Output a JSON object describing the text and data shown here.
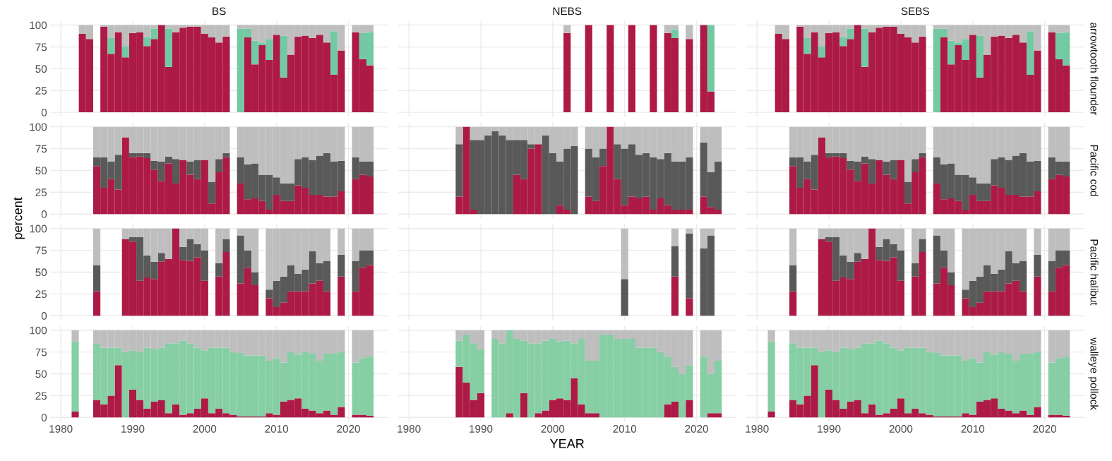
{
  "chart_data": [
    {
      "type": "bar",
      "stacked": true,
      "title": "BS",
      "tick_labels": "y",
      "grid": true,
      "xlim": [
        1978.5,
        2025.5
      ],
      "ylim": [
        -5,
        105
      ],
      "xticks": [
        1980,
        1990,
        2000,
        2010,
        2020
      ],
      "yticks": [
        0,
        25,
        50,
        75,
        100
      ],
      "x": [
        1983,
        1984,
        1986,
        1987,
        1988,
        1989,
        1990,
        1991,
        1992,
        1993,
        1994,
        1995,
        1996,
        1997,
        1998,
        1999,
        2000,
        2001,
        2002,
        2003,
        2005,
        2006,
        2007,
        2008,
        2009,
        2010,
        2011,
        2012,
        2013,
        2014,
        2015,
        2016,
        2017,
        2018,
        2019,
        2021,
        2022,
        2023
      ],
      "series": [
        {
          "color": "#ad1a45",
          "values": [
            90,
            84,
            98,
            67,
            92,
            63,
            91,
            92,
            76,
            84,
            100,
            52,
            92,
            97,
            98,
            98,
            90,
            86,
            80,
            87,
            0,
            86,
            55,
            77,
            60,
            89,
            40,
            66,
            87,
            88,
            85,
            89,
            80,
            43,
            71,
            92,
            61,
            54
          ]
        },
        {
          "color": "#73c9a2",
          "values": [
            0,
            0,
            0,
            18,
            0,
            13,
            0,
            0,
            10,
            12,
            0,
            44,
            0,
            0,
            0,
            0,
            0,
            0,
            0,
            0,
            96,
            10,
            27,
            3,
            24,
            0,
            48,
            0,
            0,
            0,
            0,
            0,
            0,
            50,
            0,
            0,
            30,
            38
          ]
        },
        {
          "color": "#bebebe",
          "values": [
            10,
            16,
            2,
            15,
            8,
            24,
            9,
            8,
            14,
            4,
            0,
            4,
            8,
            3,
            2,
            2,
            10,
            14,
            20,
            13,
            4,
            4,
            18,
            20,
            16,
            11,
            12,
            34,
            13,
            12,
            15,
            11,
            20,
            7,
            29,
            8,
            9,
            8
          ]
        }
      ]
    },
    {
      "type": "bar",
      "stacked": true,
      "title": "NEBS",
      "tick_labels": false,
      "grid": true,
      "xlim": [
        1978.5,
        2025.5
      ],
      "ylim": [
        -5,
        105
      ],
      "xticks": [
        1980,
        1990,
        2000,
        2010,
        2020
      ],
      "yticks": [
        0,
        25,
        50,
        75,
        100
      ],
      "x": [
        2002,
        2005,
        2008,
        2011,
        2014,
        2016,
        2017,
        2019,
        2021,
        2022
      ],
      "series": [
        {
          "color": "#ad1a45",
          "values": [
            91,
            100,
            100,
            100,
            100,
            91,
            85,
            84,
            100,
            24
          ]
        },
        {
          "color": "#73c9a2",
          "values": [
            0,
            0,
            0,
            0,
            0,
            0,
            10,
            0,
            0,
            76
          ]
        },
        {
          "color": "#bebebe",
          "values": [
            9,
            0,
            0,
            0,
            0,
            9,
            5,
            16,
            0,
            0
          ]
        }
      ]
    },
    {
      "type": "bar",
      "stacked": true,
      "title": "SEBS",
      "annotations": [
        "arrowtooth flounder"
      ],
      "tick_labels": false,
      "grid": true,
      "xlim": [
        1978.5,
        2025.5
      ],
      "ylim": [
        -5,
        105
      ],
      "xticks": [
        1980,
        1990,
        2000,
        2010,
        2020
      ],
      "yticks": [
        0,
        25,
        50,
        75,
        100
      ],
      "x": [
        1983,
        1984,
        1986,
        1987,
        1988,
        1989,
        1990,
        1991,
        1992,
        1993,
        1994,
        1995,
        1996,
        1997,
        1998,
        1999,
        2000,
        2001,
        2002,
        2003,
        2005,
        2006,
        2007,
        2008,
        2009,
        2010,
        2011,
        2012,
        2013,
        2014,
        2015,
        2016,
        2017,
        2018,
        2019,
        2021,
        2022,
        2023
      ],
      "series": [
        {
          "color": "#ad1a45",
          "values": [
            90,
            84,
            98,
            67,
            92,
            63,
            91,
            92,
            76,
            84,
            100,
            52,
            92,
            97,
            98,
            98,
            90,
            86,
            80,
            87,
            0,
            86,
            55,
            77,
            60,
            89,
            40,
            66,
            87,
            88,
            85,
            89,
            80,
            43,
            71,
            92,
            61,
            54
          ]
        },
        {
          "color": "#73c9a2",
          "values": [
            0,
            0,
            0,
            18,
            0,
            13,
            0,
            0,
            10,
            12,
            0,
            44,
            0,
            0,
            0,
            0,
            0,
            0,
            0,
            0,
            96,
            10,
            27,
            3,
            24,
            0,
            48,
            0,
            0,
            0,
            0,
            0,
            0,
            50,
            0,
            0,
            30,
            38
          ]
        },
        {
          "color": "#bebebe",
          "values": [
            10,
            16,
            2,
            15,
            8,
            24,
            9,
            8,
            14,
            4,
            0,
            4,
            8,
            3,
            2,
            2,
            10,
            14,
            20,
            13,
            4,
            4,
            18,
            20,
            16,
            11,
            12,
            34,
            13,
            12,
            15,
            11,
            20,
            7,
            29,
            8,
            9,
            8
          ]
        }
      ]
    },
    {
      "type": "bar",
      "stacked": true,
      "ylabel": "percent",
      "tick_labels": "y",
      "grid": true,
      "xlim": [
        1978.5,
        2025.5
      ],
      "ylim": [
        -5,
        105
      ],
      "xticks": [
        1980,
        1990,
        2000,
        2010,
        2020
      ],
      "yticks": [
        0,
        25,
        50,
        75,
        100
      ],
      "x": [
        1985,
        1986,
        1987,
        1988,
        1989,
        1990,
        1991,
        1992,
        1993,
        1994,
        1995,
        1996,
        1997,
        1998,
        1999,
        2000,
        2001,
        2002,
        2003,
        2005,
        2006,
        2007,
        2008,
        2009,
        2010,
        2011,
        2012,
        2013,
        2014,
        2015,
        2016,
        2017,
        2018,
        2019,
        2021,
        2022,
        2023
      ],
      "series": [
        {
          "color": "#ad1a45",
          "values": [
            55,
            30,
            40,
            28,
            88,
            65,
            66,
            64,
            51,
            38,
            58,
            35,
            62,
            45,
            40,
            62,
            12,
            48,
            65,
            35,
            17,
            18,
            15,
            5,
            22,
            15,
            15,
            33,
            30,
            22,
            22,
            20,
            20,
            26,
            40,
            45,
            43
          ]
        },
        {
          "color": "#595959",
          "values": [
            10,
            35,
            20,
            40,
            0,
            5,
            4,
            6,
            10,
            22,
            8,
            28,
            0,
            15,
            22,
            0,
            25,
            15,
            5,
            30,
            40,
            40,
            30,
            40,
            20,
            20,
            20,
            30,
            35,
            40,
            45,
            50,
            40,
            35,
            25,
            15,
            17
          ]
        },
        {
          "color": "#bebebe",
          "values": [
            35,
            35,
            40,
            32,
            12,
            30,
            30,
            30,
            39,
            40,
            34,
            37,
            38,
            40,
            38,
            38,
            63,
            37,
            30,
            35,
            43,
            42,
            55,
            55,
            58,
            65,
            65,
            37,
            35,
            38,
            33,
            30,
            40,
            39,
            35,
            40,
            40
          ]
        }
      ]
    },
    {
      "type": "bar",
      "stacked": true,
      "tick_labels": false,
      "grid": true,
      "xlim": [
        1978.5,
        2025.5
      ],
      "ylim": [
        -5,
        105
      ],
      "xticks": [
        1980,
        1990,
        2000,
        2010,
        2020
      ],
      "yticks": [
        0,
        25,
        50,
        75,
        100
      ],
      "x": [
        1987,
        1988,
        1989,
        1990,
        1991,
        1992,
        1993,
        1994,
        1995,
        1996,
        1997,
        1998,
        1999,
        2000,
        2001,
        2002,
        2003,
        2005,
        2006,
        2007,
        2008,
        2009,
        2010,
        2011,
        2012,
        2013,
        2014,
        2015,
        2016,
        2017,
        2018,
        2019,
        2021,
        2022,
        2023
      ],
      "series": [
        {
          "color": "#ad1a45",
          "values": [
            20,
            100,
            5,
            0,
            0,
            0,
            0,
            0,
            45,
            40,
            75,
            80,
            0,
            0,
            10,
            5,
            0,
            20,
            15,
            55,
            100,
            40,
            10,
            20,
            18,
            20,
            5,
            18,
            10,
            5,
            5,
            5,
            20,
            8,
            5
          ]
        },
        {
          "color": "#595959",
          "values": [
            60,
            0,
            80,
            85,
            90,
            95,
            90,
            85,
            40,
            45,
            5,
            0,
            90,
            70,
            50,
            70,
            78,
            55,
            50,
            20,
            0,
            40,
            65,
            60,
            50,
            50,
            60,
            45,
            60,
            55,
            55,
            60,
            62,
            40,
            55
          ]
        },
        {
          "color": "#bebebe",
          "values": [
            20,
            0,
            15,
            15,
            10,
            5,
            10,
            15,
            15,
            15,
            20,
            20,
            10,
            30,
            40,
            25,
            22,
            25,
            35,
            25,
            0,
            20,
            25,
            20,
            32,
            30,
            35,
            37,
            30,
            40,
            40,
            35,
            18,
            52,
            40
          ]
        }
      ]
    },
    {
      "type": "bar",
      "stacked": true,
      "annotations": [
        "Pacific cod"
      ],
      "tick_labels": false,
      "grid": true,
      "xlim": [
        1978.5,
        2025.5
      ],
      "ylim": [
        -5,
        105
      ],
      "xticks": [
        1980,
        1990,
        2000,
        2010,
        2020
      ],
      "yticks": [
        0,
        25,
        50,
        75,
        100
      ],
      "x": [
        1985,
        1986,
        1987,
        1988,
        1989,
        1990,
        1991,
        1992,
        1993,
        1994,
        1995,
        1996,
        1997,
        1998,
        1999,
        2000,
        2001,
        2002,
        2003,
        2005,
        2006,
        2007,
        2008,
        2009,
        2010,
        2011,
        2012,
        2013,
        2014,
        2015,
        2016,
        2017,
        2018,
        2019,
        2021,
        2022,
        2023
      ],
      "series": [
        {
          "color": "#ad1a45",
          "values": [
            55,
            30,
            40,
            28,
            88,
            65,
            66,
            64,
            51,
            38,
            58,
            35,
            62,
            45,
            40,
            62,
            12,
            48,
            65,
            35,
            17,
            18,
            15,
            5,
            22,
            15,
            15,
            33,
            30,
            22,
            22,
            20,
            20,
            26,
            40,
            45,
            43
          ]
        },
        {
          "color": "#595959",
          "values": [
            10,
            35,
            20,
            40,
            0,
            5,
            4,
            6,
            10,
            22,
            8,
            28,
            0,
            15,
            22,
            0,
            25,
            15,
            5,
            30,
            40,
            40,
            30,
            40,
            20,
            20,
            20,
            30,
            35,
            40,
            45,
            50,
            40,
            35,
            25,
            15,
            17
          ]
        },
        {
          "color": "#bebebe",
          "values": [
            35,
            35,
            40,
            32,
            12,
            30,
            30,
            30,
            39,
            40,
            34,
            37,
            38,
            40,
            38,
            38,
            63,
            37,
            30,
            35,
            43,
            42,
            55,
            55,
            58,
            65,
            65,
            37,
            35,
            38,
            33,
            30,
            40,
            39,
            35,
            40,
            40
          ]
        }
      ]
    },
    {
      "type": "bar",
      "stacked": true,
      "tick_labels": "y",
      "grid": true,
      "xlim": [
        1978.5,
        2025.5
      ],
      "ylim": [
        -5,
        105
      ],
      "xticks": [
        1980,
        1990,
        2000,
        2010,
        2020
      ],
      "yticks": [
        0,
        25,
        50,
        75,
        100
      ],
      "x": [
        1985,
        1989,
        1990,
        1991,
        1992,
        1993,
        1994,
        1995,
        1996,
        1997,
        1998,
        1999,
        2000,
        2002,
        2003,
        2005,
        2006,
        2007,
        2009,
        2010,
        2011,
        2012,
        2013,
        2014,
        2015,
        2016,
        2017,
        2019,
        2021,
        2022,
        2023
      ],
      "series": [
        {
          "color": "#ad1a45",
          "values": [
            28,
            88,
            85,
            40,
            44,
            42,
            62,
            65,
            100,
            64,
            63,
            67,
            40,
            45,
            73,
            37,
            55,
            35,
            20,
            10,
            15,
            28,
            28,
            28,
            37,
            40,
            28,
            45,
            28,
            55,
            58
          ]
        },
        {
          "color": "#595959",
          "values": [
            30,
            0,
            5,
            50,
            25,
            20,
            10,
            0,
            0,
            15,
            25,
            15,
            35,
            15,
            15,
            55,
            20,
            15,
            10,
            30,
            30,
            30,
            20,
            25,
            37,
            20,
            35,
            25,
            35,
            20,
            17
          ]
        },
        {
          "color": "#bebebe",
          "values": [
            42,
            12,
            10,
            10,
            31,
            38,
            28,
            35,
            0,
            21,
            12,
            18,
            25,
            40,
            12,
            8,
            25,
            50,
            70,
            60,
            55,
            42,
            52,
            47,
            26,
            40,
            37,
            30,
            37,
            25,
            25
          ]
        }
      ]
    },
    {
      "type": "bar",
      "stacked": true,
      "tick_labels": false,
      "grid": true,
      "xlim": [
        1978.5,
        2025.5
      ],
      "ylim": [
        -5,
        105
      ],
      "xticks": [
        1980,
        1990,
        2000,
        2010,
        2020
      ],
      "yticks": [
        0,
        25,
        50,
        75,
        100
      ],
      "x": [
        2010,
        2017,
        2019,
        2021,
        2022
      ],
      "series": [
        {
          "color": "#ad1a45",
          "values": [
            0,
            45,
            20,
            0,
            0
          ]
        },
        {
          "color": "#595959",
          "values": [
            42,
            35,
            74,
            77,
            92
          ]
        },
        {
          "color": "#bebebe",
          "values": [
            58,
            20,
            6,
            23,
            8
          ]
        }
      ]
    },
    {
      "type": "bar",
      "stacked": true,
      "annotations": [
        "Pacific halibut"
      ],
      "tick_labels": false,
      "grid": true,
      "xlim": [
        1978.5,
        2025.5
      ],
      "ylim": [
        -5,
        105
      ],
      "xticks": [
        1980,
        1990,
        2000,
        2010,
        2020
      ],
      "yticks": [
        0,
        25,
        50,
        75,
        100
      ],
      "x": [
        1985,
        1989,
        1990,
        1991,
        1992,
        1993,
        1994,
        1995,
        1996,
        1997,
        1998,
        1999,
        2000,
        2002,
        2003,
        2005,
        2006,
        2007,
        2009,
        2010,
        2011,
        2012,
        2013,
        2014,
        2015,
        2016,
        2017,
        2019,
        2021,
        2022,
        2023
      ],
      "series": [
        {
          "color": "#ad1a45",
          "values": [
            28,
            88,
            85,
            40,
            44,
            42,
            62,
            65,
            100,
            64,
            63,
            67,
            40,
            45,
            73,
            37,
            55,
            35,
            20,
            10,
            15,
            28,
            28,
            28,
            37,
            40,
            28,
            45,
            28,
            55,
            58
          ]
        },
        {
          "color": "#595959",
          "values": [
            30,
            0,
            5,
            50,
            25,
            20,
            10,
            0,
            0,
            15,
            25,
            15,
            35,
            15,
            15,
            55,
            20,
            15,
            10,
            30,
            30,
            30,
            20,
            25,
            37,
            20,
            35,
            25,
            35,
            20,
            17
          ]
        },
        {
          "color": "#bebebe",
          "values": [
            42,
            12,
            10,
            10,
            31,
            38,
            28,
            35,
            0,
            21,
            12,
            18,
            25,
            40,
            12,
            8,
            25,
            50,
            70,
            60,
            55,
            42,
            52,
            47,
            26,
            40,
            37,
            30,
            37,
            25,
            25
          ]
        }
      ]
    },
    {
      "type": "bar",
      "stacked": true,
      "grid": true,
      "xlim": [
        1978.5,
        2025.5
      ],
      "ylim": [
        -5,
        105
      ],
      "xticks": [
        1980,
        1990,
        2000,
        2010,
        2020
      ],
      "yticks": [
        0,
        25,
        50,
        75,
        100
      ],
      "x": [
        1982,
        1985,
        1986,
        1987,
        1988,
        1989,
        1990,
        1991,
        1992,
        1993,
        1994,
        1995,
        1996,
        1997,
        1998,
        1999,
        2000,
        2001,
        2002,
        2003,
        2004,
        2005,
        2006,
        2007,
        2008,
        2009,
        2010,
        2011,
        2012,
        2013,
        2014,
        2015,
        2016,
        2017,
        2018,
        2019,
        2021,
        2022,
        2023
      ],
      "series": [
        {
          "color": "#ad1a45",
          "values": [
            7,
            20,
            15,
            25,
            60,
            0,
            32,
            20,
            10,
            18,
            20,
            5,
            15,
            3,
            5,
            10,
            22,
            5,
            10,
            5,
            3,
            1,
            1,
            1,
            1,
            5,
            3,
            18,
            20,
            22,
            10,
            8,
            5,
            8,
            3,
            12,
            3,
            3,
            2
          ]
        },
        {
          "color": "#86cea4",
          "values": [
            80,
            65,
            65,
            55,
            20,
            75,
            45,
            55,
            70,
            60,
            60,
            80,
            70,
            85,
            80,
            70,
            55,
            75,
            70,
            75,
            72,
            73,
            70,
            70,
            70,
            60,
            65,
            45,
            55,
            50,
            65,
            65,
            60,
            65,
            70,
            63,
            60,
            65,
            68
          ]
        },
        {
          "color": "#bebebe",
          "values": [
            13,
            15,
            20,
            20,
            20,
            25,
            23,
            25,
            20,
            22,
            20,
            15,
            15,
            12,
            15,
            20,
            23,
            20,
            20,
            20,
            25,
            26,
            29,
            29,
            29,
            35,
            32,
            37,
            25,
            28,
            25,
            27,
            35,
            27,
            27,
            25,
            37,
            32,
            30
          ]
        }
      ]
    },
    {
      "type": "bar",
      "stacked": true,
      "xlabel": "YEAR",
      "tick_labels": "x",
      "grid": true,
      "xlim": [
        1978.5,
        2025.5
      ],
      "ylim": [
        -5,
        105
      ],
      "xticks": [
        1980,
        1990,
        2000,
        2010,
        2020
      ],
      "yticks": [
        0,
        25,
        50,
        75,
        100
      ],
      "x": [
        1987,
        1988,
        1989,
        1990,
        1992,
        1993,
        1994,
        1995,
        1996,
        1997,
        1998,
        1999,
        2000,
        2001,
        2002,
        2003,
        2004,
        2005,
        2006,
        2007,
        2008,
        2009,
        2010,
        2011,
        2012,
        2013,
        2014,
        2015,
        2016,
        2017,
        2018,
        2019,
        2021,
        2022,
        2023
      ],
      "series": [
        {
          "color": "#ad1a45",
          "values": [
            58,
            40,
            20,
            28,
            0,
            0,
            5,
            0,
            28,
            0,
            5,
            8,
            20,
            22,
            20,
            45,
            15,
            5,
            5,
            0,
            0,
            0,
            0,
            0,
            0,
            0,
            0,
            0,
            15,
            18,
            0,
            20,
            0,
            5,
            5
          ]
        },
        {
          "color": "#86cea4",
          "values": [
            30,
            55,
            65,
            50,
            90,
            85,
            95,
            90,
            60,
            85,
            80,
            80,
            70,
            65,
            68,
            40,
            75,
            60,
            60,
            95,
            95,
            90,
            90,
            90,
            80,
            80,
            80,
            75,
            55,
            40,
            50,
            40,
            70,
            45,
            60
          ]
        },
        {
          "color": "#bebebe",
          "values": [
            12,
            5,
            15,
            22,
            10,
            15,
            0,
            10,
            12,
            15,
            15,
            12,
            10,
            13,
            12,
            15,
            10,
            35,
            35,
            5,
            5,
            10,
            10,
            10,
            20,
            20,
            20,
            25,
            30,
            42,
            50,
            40,
            30,
            50,
            35
          ]
        }
      ]
    },
    {
      "type": "bar",
      "stacked": true,
      "annotations": [
        "walleye pollock"
      ],
      "tick_labels": "x",
      "grid": true,
      "xlim": [
        1978.5,
        2025.5
      ],
      "ylim": [
        -5,
        105
      ],
      "xticks": [
        1980,
        1990,
        2000,
        2010,
        2020
      ],
      "yticks": [
        0,
        25,
        50,
        75,
        100
      ],
      "x": [
        1982,
        1985,
        1986,
        1987,
        1988,
        1989,
        1990,
        1991,
        1992,
        1993,
        1994,
        1995,
        1996,
        1997,
        1998,
        1999,
        2000,
        2001,
        2002,
        2003,
        2004,
        2005,
        2006,
        2007,
        2008,
        2009,
        2010,
        2011,
        2012,
        2013,
        2014,
        2015,
        2016,
        2017,
        2018,
        2019,
        2021,
        2022,
        2023
      ],
      "series": [
        {
          "color": "#ad1a45",
          "values": [
            7,
            20,
            15,
            25,
            60,
            0,
            32,
            20,
            10,
            18,
            20,
            5,
            15,
            3,
            5,
            10,
            22,
            5,
            10,
            5,
            3,
            1,
            1,
            1,
            1,
            5,
            3,
            18,
            20,
            22,
            10,
            8,
            5,
            8,
            3,
            12,
            3,
            3,
            2
          ]
        },
        {
          "color": "#86cea4",
          "values": [
            80,
            65,
            65,
            55,
            20,
            75,
            45,
            55,
            70,
            60,
            60,
            80,
            70,
            85,
            80,
            70,
            55,
            75,
            70,
            75,
            72,
            73,
            70,
            70,
            70,
            60,
            65,
            45,
            55,
            50,
            65,
            65,
            60,
            65,
            70,
            63,
            60,
            65,
            68
          ]
        },
        {
          "color": "#bebebe",
          "values": [
            13,
            15,
            20,
            20,
            20,
            25,
            23,
            25,
            20,
            22,
            20,
            15,
            15,
            12,
            15,
            20,
            23,
            20,
            20,
            20,
            25,
            26,
            29,
            29,
            29,
            35,
            32,
            37,
            25,
            28,
            25,
            27,
            35,
            27,
            27,
            25,
            37,
            32,
            30
          ]
        }
      ]
    }
  ]
}
